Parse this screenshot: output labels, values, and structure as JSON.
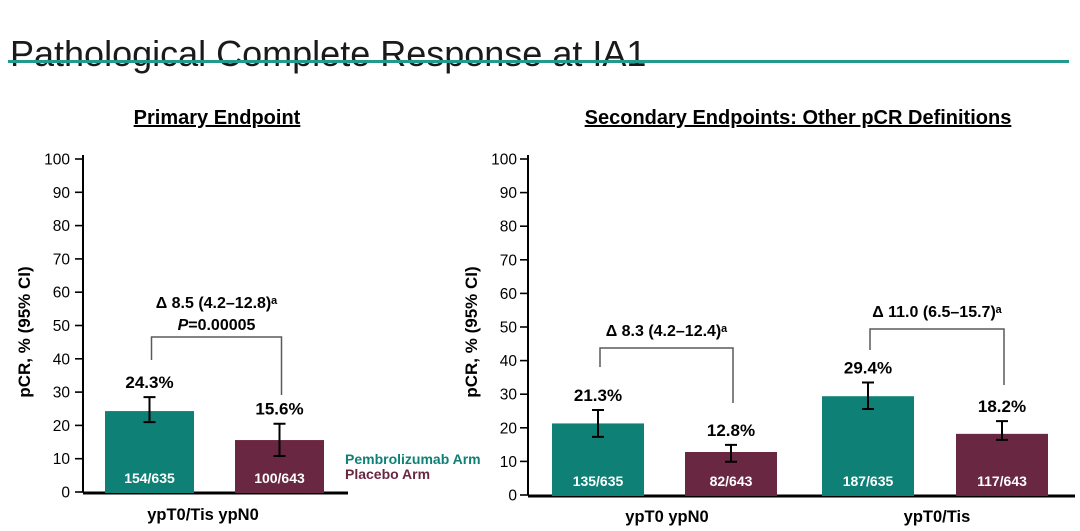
{
  "slide": {
    "title": "Pathological Complete Response at IA1",
    "accent_color": "#229A90"
  },
  "legend": {
    "position": "between-charts-bottom",
    "items": [
      {
        "label": "Pembrolizumab Arm",
        "color": "#0E8076"
      },
      {
        "label": "Placebo Arm",
        "color": "#6A2742"
      }
    ]
  },
  "chart_data": [
    {
      "type": "bar",
      "title": "Primary Endpoint",
      "ylabel": "pCR, % (95% CI)",
      "ylim": [
        0,
        100
      ],
      "ytick_step": 10,
      "grid": false,
      "categories": [
        "ypT0/Tis ypN0"
      ],
      "series": [
        {
          "name": "Pembrolizumab Arm",
          "color": "#0E8076",
          "values": [
            24.3
          ],
          "value_labels": [
            "24.3%"
          ],
          "counts": [
            "154/635"
          ],
          "ci_low": [
            21.0
          ],
          "ci_high": [
            28.5
          ]
        },
        {
          "name": "Placebo Arm",
          "color": "#6A2742",
          "values": [
            15.6
          ],
          "value_labels": [
            "15.6%"
          ],
          "counts": [
            "100/643"
          ],
          "ci_low": [
            10.8
          ],
          "ci_high": [
            20.5
          ]
        }
      ],
      "annotations": [
        {
          "group": 0,
          "text": "Δ 8.5 (4.2–12.8)ᵃ",
          "p_label": "P",
          "p_value": "=0.00005"
        }
      ]
    },
    {
      "type": "bar",
      "title": "Secondary Endpoints: Other pCR Definitions",
      "ylabel": "pCR, % (95% CI)",
      "ylim": [
        0,
        100
      ],
      "ytick_step": 10,
      "grid": false,
      "categories": [
        "ypT0 ypN0",
        "ypT0/Tis"
      ],
      "series": [
        {
          "name": "Pembrolizumab Arm",
          "color": "#0E8076",
          "values": [
            21.3,
            29.4
          ],
          "value_labels": [
            "21.3%",
            "29.4%"
          ],
          "counts": [
            "135/635",
            "187/635"
          ],
          "ci_low": [
            17.3,
            25.6
          ],
          "ci_high": [
            25.3,
            33.5
          ]
        },
        {
          "name": "Placebo Arm",
          "color": "#6A2742",
          "values": [
            12.8,
            18.2
          ],
          "value_labels": [
            "12.8%",
            "18.2%"
          ],
          "counts": [
            "82/643",
            "117/643"
          ],
          "ci_low": [
            9.9,
            16.4
          ],
          "ci_high": [
            14.9,
            22.0
          ]
        }
      ],
      "annotations": [
        {
          "group": 0,
          "text": "Δ 8.3 (4.2–12.4)ᵃ"
        },
        {
          "group": 1,
          "text": "Δ 11.0 (6.5–15.7)ᵃ"
        }
      ]
    }
  ]
}
